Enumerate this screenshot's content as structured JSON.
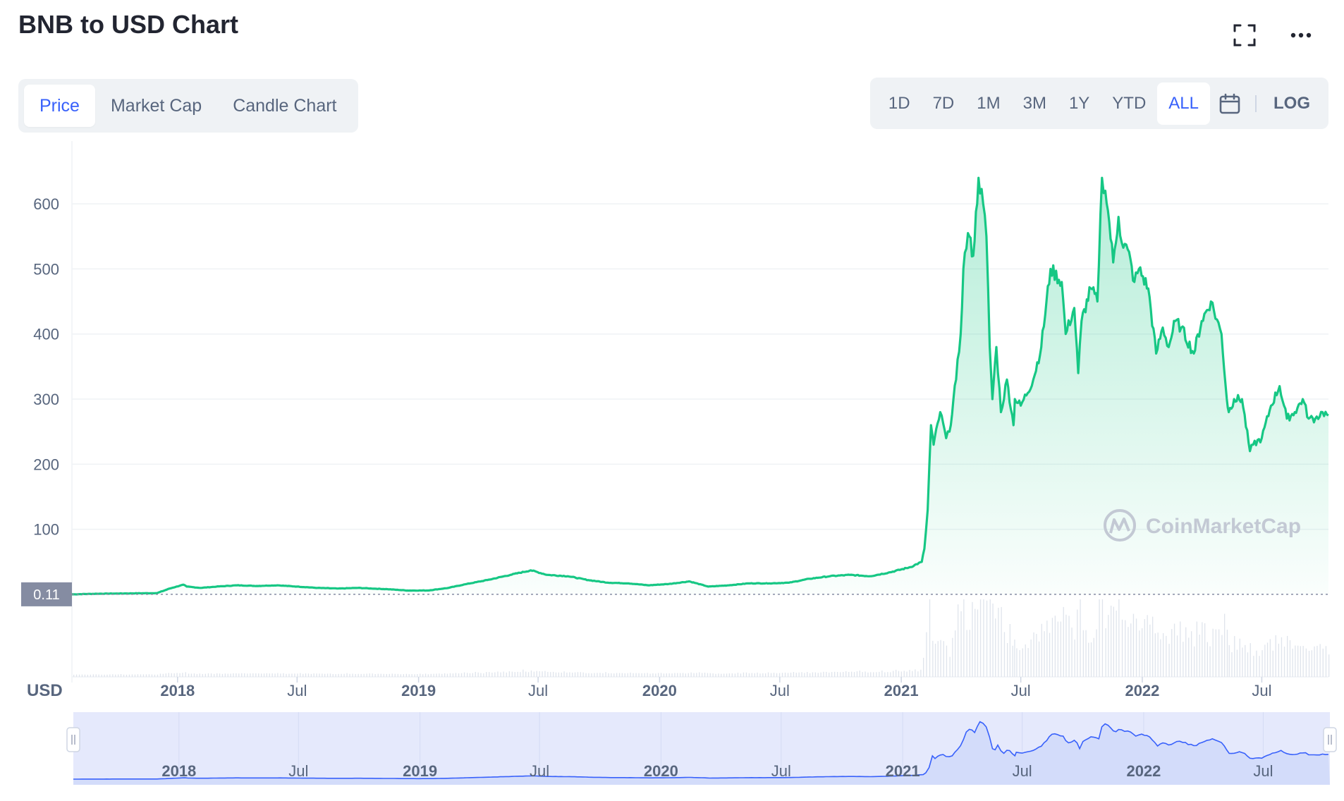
{
  "header": {
    "title": "BNB to USD Chart",
    "fullscreen_icon": "expand-icon",
    "more_icon": "more-horizontal-icon"
  },
  "tabs": [
    {
      "label": "Price",
      "active": true
    },
    {
      "label": "Market Cap",
      "active": false
    },
    {
      "label": "Candle Chart",
      "active": false
    }
  ],
  "ranges": [
    {
      "label": "1D",
      "active": false
    },
    {
      "label": "7D",
      "active": false
    },
    {
      "label": "1M",
      "active": false
    },
    {
      "label": "3M",
      "active": false
    },
    {
      "label": "1Y",
      "active": false
    },
    {
      "label": "YTD",
      "active": false
    },
    {
      "label": "ALL",
      "active": true
    }
  ],
  "calendar_icon": "calendar-icon",
  "log_label": "LOG",
  "colors": {
    "line": "#16c784",
    "accent": "#3861fb",
    "navigator_line": "#3861fb",
    "navigator_bg": "#e8ecfb",
    "current_badge": "#858ca2"
  },
  "chart_data": {
    "type": "line",
    "title": "BNB to USD Chart",
    "currency_label": "USD",
    "current_value_label": "0.11",
    "watermark": "CoinMarketCap",
    "ylim": [
      0,
      690
    ],
    "yticks": [
      100,
      200,
      300,
      400,
      500,
      600
    ],
    "x_ticks": [
      {
        "date": "2018-01-01",
        "label": "2018",
        "year": true
      },
      {
        "date": "2018-07-01",
        "label": "Jul",
        "year": false
      },
      {
        "date": "2019-01-01",
        "label": "2019",
        "year": true
      },
      {
        "date": "2019-07-01",
        "label": "Jul",
        "year": false
      },
      {
        "date": "2020-01-01",
        "label": "2020",
        "year": true
      },
      {
        "date": "2020-07-01",
        "label": "Jul",
        "year": false
      },
      {
        "date": "2021-01-01",
        "label": "2021",
        "year": true
      },
      {
        "date": "2021-07-01",
        "label": "Jul",
        "year": false
      },
      {
        "date": "2022-01-01",
        "label": "2022",
        "year": true
      },
      {
        "date": "2022-07-01",
        "label": "Jul",
        "year": false
      }
    ],
    "series": [
      {
        "x": [
          "2017-07-25",
          "2017-09-01",
          "2017-10-15",
          "2017-12-01",
          "2017-12-20",
          "2018-01-10",
          "2018-01-15",
          "2018-02-05",
          "2018-03-01",
          "2018-04-01",
          "2018-05-01",
          "2018-06-01",
          "2018-07-01",
          "2018-08-01",
          "2018-09-01",
          "2018-10-01",
          "2018-11-15",
          "2018-12-15",
          "2019-01-15",
          "2019-02-15",
          "2019-03-15",
          "2019-04-15",
          "2019-05-20",
          "2019-06-20",
          "2019-07-15",
          "2019-08-15",
          "2019-09-15",
          "2019-10-15",
          "2019-11-15",
          "2019-12-15",
          "2020-01-15",
          "2020-02-15",
          "2020-03-15",
          "2020-04-15",
          "2020-05-15",
          "2020-06-15",
          "2020-07-15",
          "2020-08-15",
          "2020-09-15",
          "2020-10-15",
          "2020-11-15",
          "2020-12-15",
          "2021-01-15",
          "2021-02-01",
          "2021-02-05",
          "2021-02-10",
          "2021-02-15",
          "2021-02-19",
          "2021-03-01",
          "2021-03-10",
          "2021-03-15",
          "2021-03-25",
          "2021-04-01",
          "2021-04-05",
          "2021-04-12",
          "2021-04-20",
          "2021-04-28",
          "2021-05-05",
          "2021-05-10",
          "2021-05-15",
          "2021-05-19",
          "2021-05-25",
          "2021-06-01",
          "2021-06-10",
          "2021-06-20",
          "2021-06-22",
          "2021-07-01",
          "2021-07-20",
          "2021-08-01",
          "2021-08-15",
          "2021-09-01",
          "2021-09-07",
          "2021-09-20",
          "2021-09-26",
          "2021-10-01",
          "2021-10-15",
          "2021-10-25",
          "2021-11-01",
          "2021-11-06",
          "2021-11-10",
          "2021-11-18",
          "2021-11-26",
          "2021-12-01",
          "2021-12-10",
          "2021-12-20",
          "2021-12-27",
          "2022-01-10",
          "2022-01-22",
          "2022-02-01",
          "2022-02-10",
          "2022-02-20",
          "2022-03-01",
          "2022-03-20",
          "2022-04-01",
          "2022-04-15",
          "2022-05-01",
          "2022-05-09",
          "2022-05-12",
          "2022-05-20",
          "2022-06-01",
          "2022-06-13",
          "2022-06-18",
          "2022-07-01",
          "2022-07-15",
          "2022-07-28",
          "2022-08-08",
          "2022-08-20",
          "2022-09-01",
          "2022-09-10",
          "2022-09-20",
          "2022-10-01",
          "2022-10-10"
        ],
        "y": [
          0.11,
          1,
          1.5,
          2,
          9,
          15,
          12,
          10,
          12,
          14,
          13,
          14,
          12,
          10,
          9,
          10,
          8,
          6,
          6,
          10,
          16,
          22,
          30,
          37,
          30,
          28,
          22,
          18,
          17,
          14,
          16,
          20,
          12,
          14,
          17,
          17,
          18,
          24,
          28,
          30,
          28,
          34,
          42,
          50,
          70,
          130,
          260,
          230,
          280,
          240,
          250,
          330,
          400,
          500,
          555,
          520,
          640,
          600,
          550,
          380,
          300,
          380,
          280,
          330,
          260,
          300,
          290,
          330,
          380,
          500,
          480,
          400,
          440,
          340,
          420,
          470,
          450,
          640,
          620,
          590,
          510,
          580,
          540,
          530,
          480,
          500,
          470,
          370,
          410,
          380,
          420,
          410,
          370,
          420,
          450,
          400,
          300,
          280,
          300,
          300,
          220,
          230,
          240,
          290,
          320,
          270,
          280,
          300,
          270,
          270,
          280,
          275
        ]
      }
    ],
    "legend": "none",
    "grid": true
  },
  "navigator": {
    "x_ticks": [
      {
        "label": "2018",
        "year": true
      },
      {
        "label": "Jul",
        "year": false
      },
      {
        "label": "2019",
        "year": true
      },
      {
        "label": "Jul",
        "year": false
      },
      {
        "label": "2020",
        "year": true
      },
      {
        "label": "Jul",
        "year": false
      },
      {
        "label": "2021",
        "year": true
      },
      {
        "label": "Jul",
        "year": false
      },
      {
        "label": "2022",
        "year": true
      },
      {
        "label": "Jul",
        "year": false
      }
    ]
  }
}
